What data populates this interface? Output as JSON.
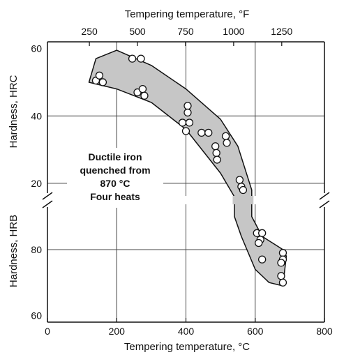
{
  "chart_data": {
    "type": "scatter",
    "title": "",
    "xlabel": "Tempering temperature, °C",
    "x2label": "Tempering temperature, °F",
    "ylabel_upper": "Hardness, HRC",
    "ylabel_lower": "Hardness, HRB",
    "xlim": [
      0,
      800
    ],
    "xticks": [
      "0",
      "200",
      "400",
      "600",
      "800"
    ],
    "x2ticks": [
      "250",
      "500",
      "750",
      "1000",
      "1250"
    ],
    "x2tick_values_F": [
      250,
      500,
      750,
      1000,
      1250
    ],
    "upper_ylim_HRC": [
      15,
      62
    ],
    "upper_yticks": [
      "20",
      "40",
      "60"
    ],
    "lower_ylim_HRB": [
      58,
      95
    ],
    "lower_yticks": [
      "60",
      "80"
    ],
    "grid": true,
    "axis_break": "between HRC 20 and HRB 80",
    "annotation": [
      "Ductile iron",
      "quenched from",
      "870 °C",
      "Four heats"
    ],
    "band_upper_edge": [
      {
        "x": 140,
        "scale": "HRC",
        "y": 57
      },
      {
        "x": 200,
        "scale": "HRC",
        "y": 59.5
      },
      {
        "x": 300,
        "scale": "HRC",
        "y": 55
      },
      {
        "x": 400,
        "scale": "HRC",
        "y": 48
      },
      {
        "x": 500,
        "scale": "HRC",
        "y": 39
      },
      {
        "x": 550,
        "scale": "HRC",
        "y": 31
      },
      {
        "x": 590,
        "scale": "HRC",
        "y": 18
      },
      {
        "x": 590,
        "scale": "HRB",
        "y": 90
      },
      {
        "x": 620,
        "scale": "HRB",
        "y": 84
      },
      {
        "x": 680,
        "scale": "HRB",
        "y": 80
      },
      {
        "x": 690,
        "scale": "HRB",
        "y": 78
      }
    ],
    "band_lower_edge": [
      {
        "x": 690,
        "scale": "HRB",
        "y": 78
      },
      {
        "x": 680,
        "scale": "HRB",
        "y": 69
      },
      {
        "x": 640,
        "scale": "HRB",
        "y": 70
      },
      {
        "x": 600,
        "scale": "HRB",
        "y": 74
      },
      {
        "x": 560,
        "scale": "HRB",
        "y": 84
      },
      {
        "x": 540,
        "scale": "HRB",
        "y": 90
      },
      {
        "x": 540,
        "scale": "HRC",
        "y": 16
      },
      {
        "x": 500,
        "scale": "HRC",
        "y": 23
      },
      {
        "x": 400,
        "scale": "HRC",
        "y": 36
      },
      {
        "x": 300,
        "scale": "HRC",
        "y": 44
      },
      {
        "x": 200,
        "scale": "HRC",
        "y": 48
      },
      {
        "x": 120,
        "scale": "HRC",
        "y": 50
      }
    ],
    "series": [
      {
        "scale": "HRC",
        "points": [
          {
            "x": 140,
            "y": 50.5
          },
          {
            "x": 150,
            "y": 52
          },
          {
            "x": 160,
            "y": 50
          },
          {
            "x": 245,
            "y": 57
          },
          {
            "x": 270,
            "y": 57
          },
          {
            "x": 260,
            "y": 47
          },
          {
            "x": 275,
            "y": 48
          },
          {
            "x": 280,
            "y": 46
          },
          {
            "x": 390,
            "y": 38
          },
          {
            "x": 400,
            "y": 35.5
          },
          {
            "x": 410,
            "y": 38
          },
          {
            "x": 405,
            "y": 43
          },
          {
            "x": 405,
            "y": 41
          },
          {
            "x": 445,
            "y": 35
          },
          {
            "x": 465,
            "y": 35
          },
          {
            "x": 485,
            "y": 31
          },
          {
            "x": 488,
            "y": 29
          },
          {
            "x": 490,
            "y": 27
          },
          {
            "x": 515,
            "y": 34
          },
          {
            "x": 518,
            "y": 32
          },
          {
            "x": 555,
            "y": 21
          },
          {
            "x": 560,
            "y": 19
          },
          {
            "x": 565,
            "y": 18
          }
        ]
      },
      {
        "scale": "HRB",
        "points": [
          {
            "x": 605,
            "y": 85
          },
          {
            "x": 615,
            "y": 83
          },
          {
            "x": 620,
            "y": 85
          },
          {
            "x": 610,
            "y": 82
          },
          {
            "x": 620,
            "y": 77
          },
          {
            "x": 680,
            "y": 79
          },
          {
            "x": 680,
            "y": 77
          },
          {
            "x": 675,
            "y": 76
          },
          {
            "x": 675,
            "y": 72
          },
          {
            "x": 680,
            "y": 70
          }
        ]
      }
    ]
  }
}
